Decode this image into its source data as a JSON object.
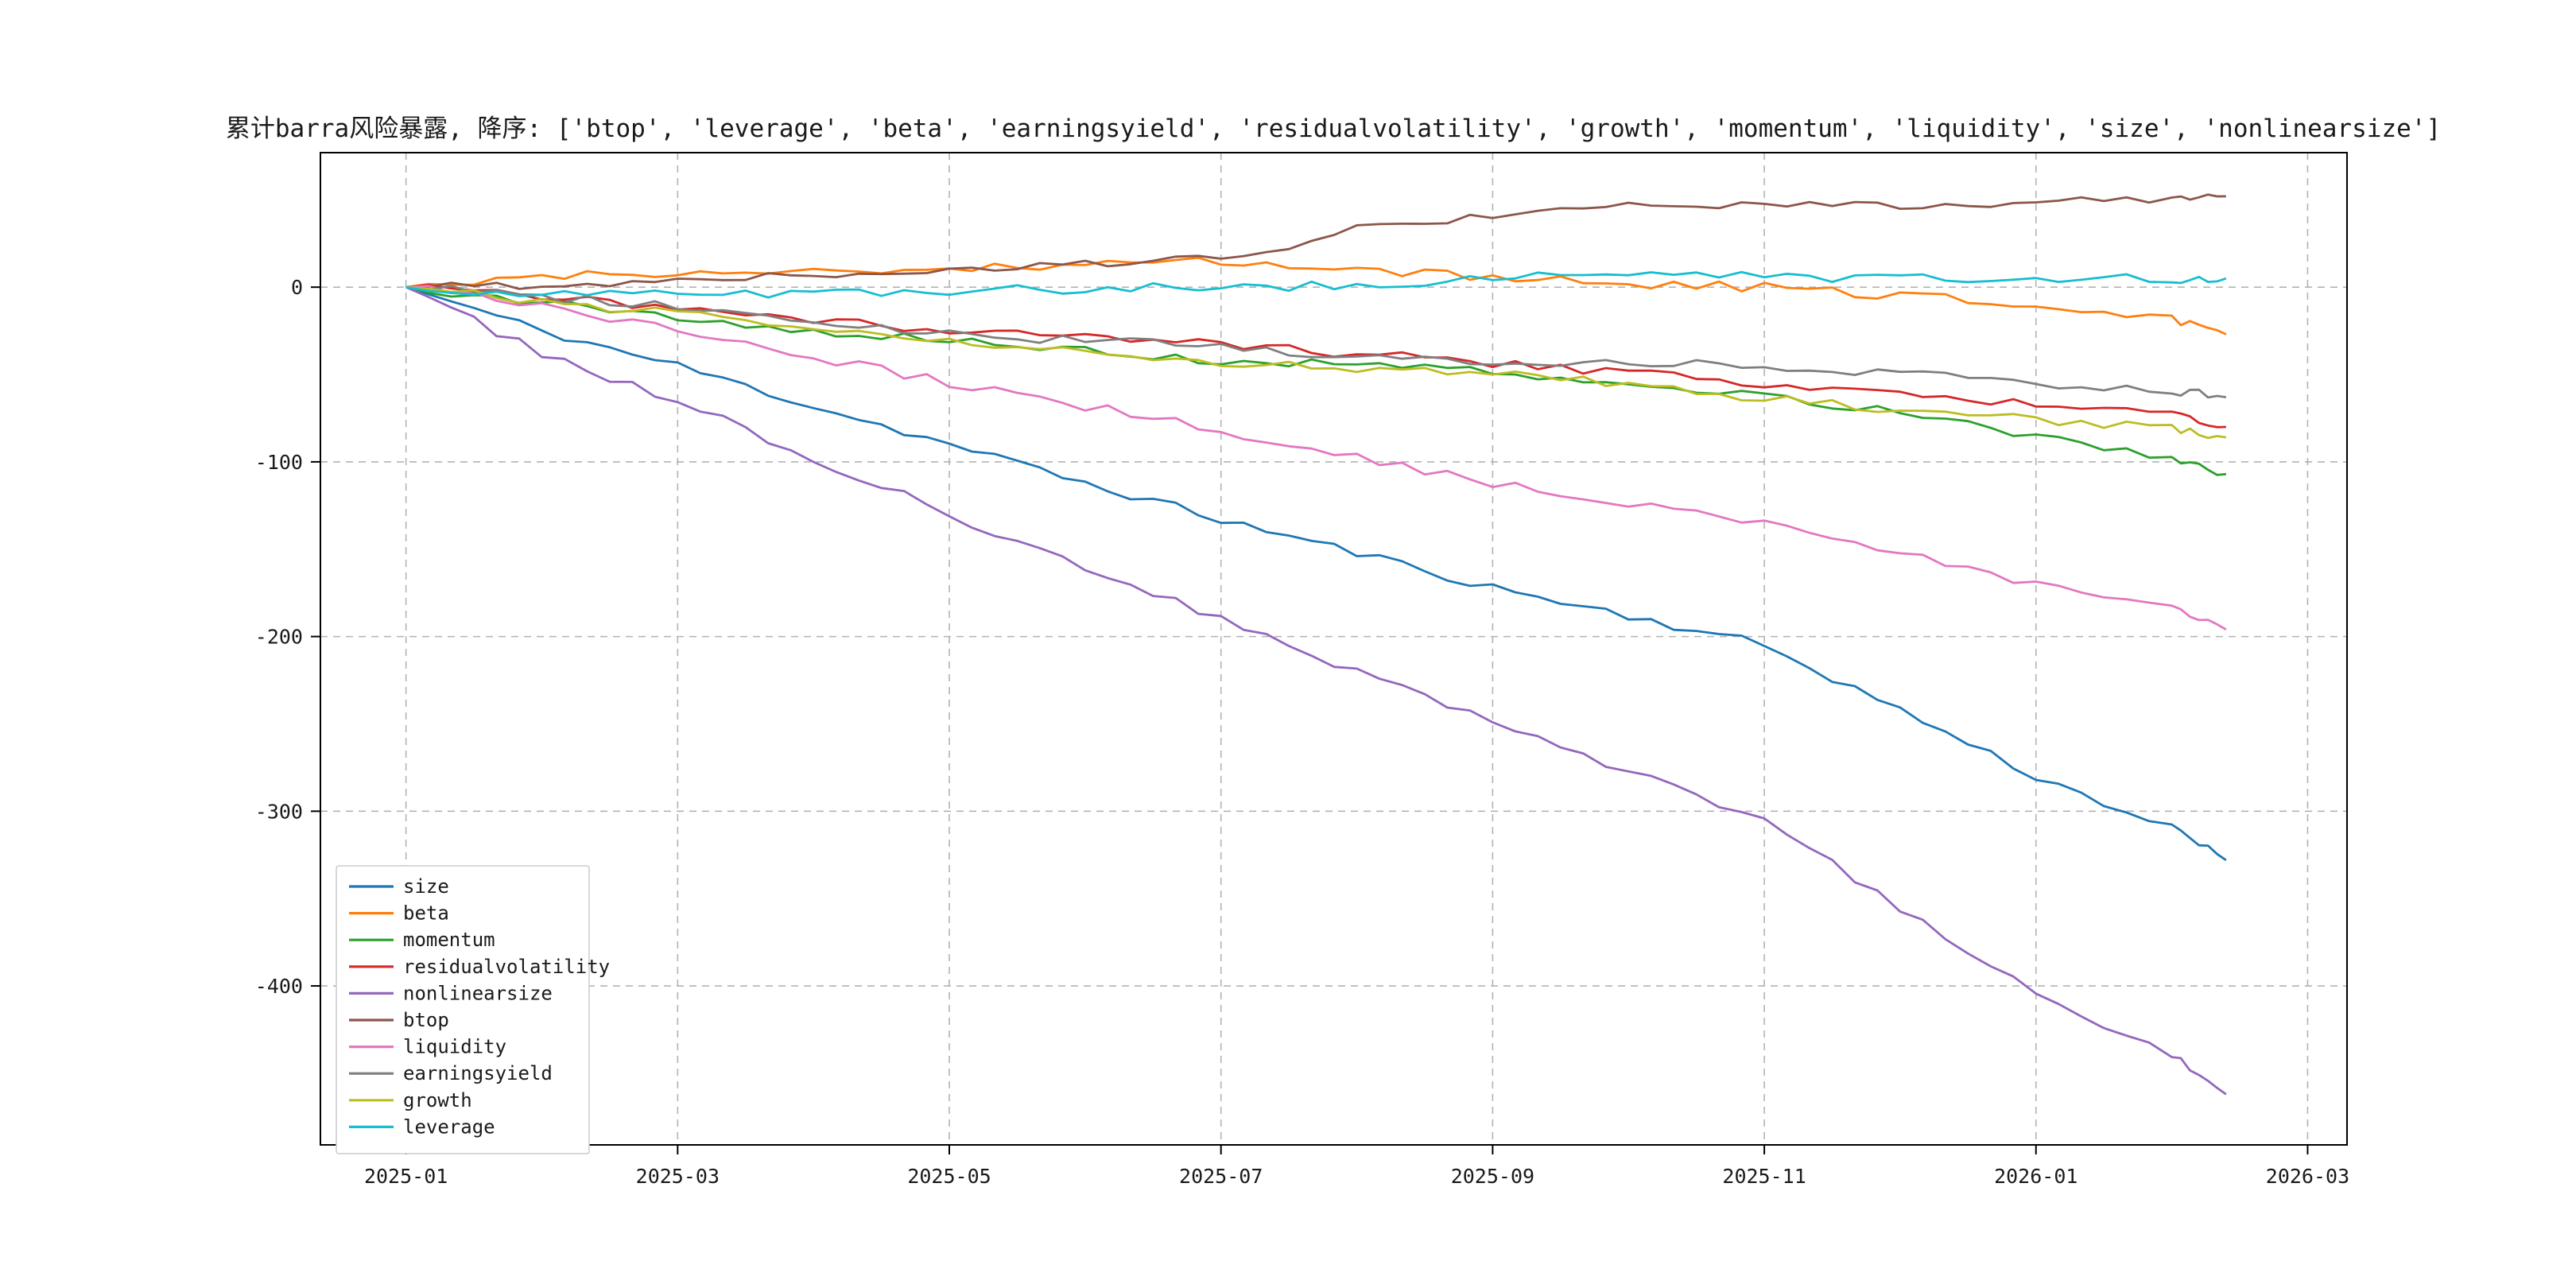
{
  "title": "累计barra风险暴露, 降序: ['btop', 'leverage', 'beta', 'earningsyield', 'residualvolatility', 'growth', 'momentum', 'liquidity', 'size', 'nonlinearsize']",
  "chart_data": {
    "type": "line",
    "title": "累计barra风险暴露, 降序: ['btop', 'leverage', 'beta', 'earningsyield', 'residualvolatility', 'growth', 'momentum', 'liquidity', 'size', 'nonlinearsize']",
    "xlabel": "",
    "ylabel": "",
    "grid": "dashed",
    "legend_position": "lower left",
    "x_tick_labels": [
      "2025-01",
      "2025-03",
      "2025-05",
      "2025-07",
      "2025-09",
      "2025-11",
      "2026-01",
      "2026-03"
    ],
    "x_tick_months": [
      0,
      2,
      4,
      6,
      8,
      10,
      12,
      14
    ],
    "y_tick_labels": [
      "0",
      "-100",
      "-200",
      "-300",
      "-400"
    ],
    "y_ticks": [
      0,
      -100,
      -200,
      -300,
      -400
    ],
    "xlim_months": [
      -0.63,
      14.29
    ],
    "ylim": [
      -491,
      77
    ],
    "x_months": [
      0,
      1,
      2,
      3,
      4,
      5,
      6,
      7,
      8,
      9,
      10,
      11,
      12,
      13,
      13.4
    ],
    "x_point_labels": [
      "2025-01",
      "2025-02",
      "2025-03",
      "2025-04",
      "2025-05",
      "2025-06",
      "2025-07",
      "2025-08",
      "2025-09",
      "2025-10",
      "2025-11",
      "2025-12",
      "2026-01",
      "2026-02",
      "2026-02-12"
    ],
    "series": [
      {
        "name": "size",
        "color": "#1f77b4",
        "values": [
          0,
          -25,
          -45,
          -68,
          -90,
          -112,
          -133,
          -152,
          -172,
          -188,
          -205,
          -242,
          -280,
          -310,
          -328
        ]
      },
      {
        "name": "beta",
        "color": "#ff7f0e",
        "values": [
          0,
          6,
          9,
          8,
          10,
          12,
          15,
          10,
          5,
          2,
          0,
          -5,
          -10,
          -18,
          -27
        ]
      },
      {
        "name": "momentum",
        "color": "#2ca02c",
        "values": [
          0,
          -8,
          -18,
          -25,
          -30,
          -37,
          -42,
          -45,
          -48,
          -55,
          -62,
          -72,
          -85,
          -97,
          -107
        ]
      },
      {
        "name": "residualvolatility",
        "color": "#d62728",
        "values": [
          0,
          -5,
          -12,
          -18,
          -25,
          -29,
          -33,
          -38,
          -43,
          -49,
          -55,
          -61,
          -67,
          -74,
          -80
        ]
      },
      {
        "name": "nonlinearsize",
        "color": "#9467bd",
        "values": [
          0,
          -38,
          -65,
          -98,
          -130,
          -160,
          -190,
          -220,
          -250,
          -278,
          -305,
          -355,
          -403,
          -440,
          -462
        ]
      },
      {
        "name": "btop",
        "color": "#8c564b",
        "values": [
          0,
          2,
          4,
          7,
          10,
          13,
          16,
          33,
          42,
          46,
          47,
          47,
          48,
          50,
          52
        ]
      },
      {
        "name": "liquidity",
        "color": "#e377c2",
        "values": [
          0,
          -10,
          -25,
          -40,
          -55,
          -68,
          -82,
          -97,
          -112,
          -124,
          -135,
          -152,
          -170,
          -185,
          -196
        ]
      },
      {
        "name": "earningsyield",
        "color": "#7f7f7f",
        "values": [
          0,
          -6,
          -10,
          -18,
          -27,
          -31,
          -34,
          -39,
          -44,
          -42,
          -45,
          -50,
          -55,
          -59,
          -63
        ]
      },
      {
        "name": "growth",
        "color": "#bcbd22",
        "values": [
          0,
          -9,
          -15,
          -23,
          -30,
          -37,
          -43,
          -46,
          -48,
          -56,
          -64,
          -70,
          -76,
          -81,
          -86
        ]
      },
      {
        "name": "leverage",
        "color": "#17becf",
        "values": [
          0,
          -4,
          -4,
          -3,
          -2,
          -1,
          0,
          1,
          5,
          7,
          6,
          5,
          5,
          5,
          5
        ]
      }
    ],
    "colors": {
      "grid": "#b3b3b3",
      "axis_border": "#000000",
      "legend_border": "#cccccc",
      "legend_bg": "#ffffff"
    }
  }
}
